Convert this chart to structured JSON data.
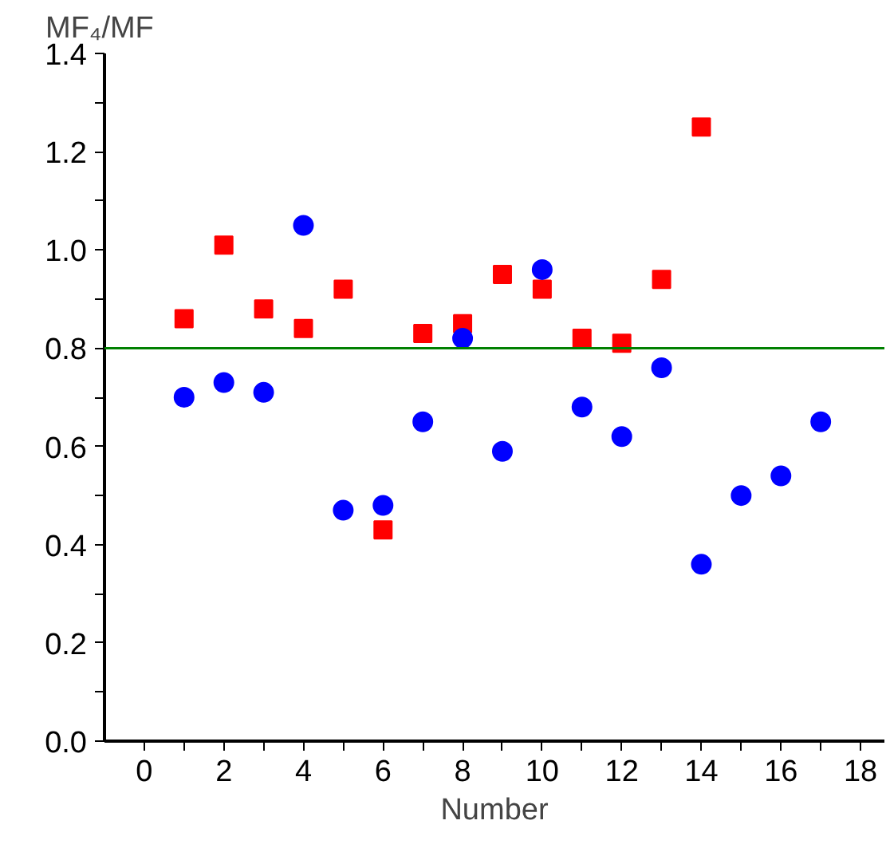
{
  "chart_data": {
    "type": "scatter",
    "xlabel": "Number",
    "ylabel": "MF₄/MF",
    "series": [
      {
        "color": "#ff0000",
        "marker": "square",
        "x": [
          1,
          2,
          3,
          4,
          5,
          6,
          7,
          8,
          9,
          10,
          11,
          12,
          13,
          14
        ],
        "values": [
          0.86,
          1.01,
          0.88,
          0.84,
          0.92,
          0.43,
          0.83,
          0.85,
          0.95,
          0.92,
          0.82,
          0.81,
          0.94,
          1.25
        ]
      },
      {
        "color": "#0000ff",
        "marker": "circle",
        "x": [
          1,
          2,
          3,
          4,
          5,
          6,
          7,
          8,
          9,
          10,
          11,
          12,
          13,
          14,
          15,
          16,
          17
        ],
        "values": [
          0.7,
          0.73,
          0.71,
          1.05,
          0.47,
          0.48,
          0.65,
          0.82,
          0.59,
          0.96,
          0.68,
          0.62,
          0.76,
          0.36,
          0.5,
          0.54,
          0.65
        ]
      }
    ],
    "ref_lines": [
      {
        "axis": "y",
        "value": 0.8,
        "color": "#008000"
      }
    ],
    "xlim": [
      -1,
      18.6
    ],
    "ylim": [
      0,
      1.4
    ],
    "xticks": [
      0,
      {
        "value": 1,
        "label": null
      },
      2,
      {
        "value": 3,
        "label": null
      },
      4,
      {
        "value": 5,
        "label": null
      },
      6,
      {
        "value": 7,
        "label": null
      },
      8,
      {
        "value": 9,
        "label": null
      },
      10,
      {
        "value": 11,
        "label": null
      },
      12,
      {
        "value": 13,
        "label": null
      },
      14,
      {
        "value": 15,
        "label": null
      },
      16,
      {
        "value": 17,
        "label": null
      },
      18
    ],
    "yticks": [
      {
        "value": 0,
        "label": "0.0"
      },
      {
        "value": 0.1,
        "label": null
      },
      {
        "value": 0.2,
        "label": "0.2"
      },
      {
        "value": 0.3,
        "label": null
      },
      {
        "value": 0.4,
        "label": "0.4"
      },
      {
        "value": 0.5,
        "label": null
      },
      {
        "value": 0.6,
        "label": "0.6"
      },
      {
        "value": 0.7,
        "label": null
      },
      {
        "value": 0.8,
        "label": "0.8"
      },
      {
        "value": 0.9,
        "label": null
      },
      {
        "value": 1.0,
        "label": "1.0"
      },
      {
        "value": 1.1,
        "label": null
      },
      {
        "value": 1.2,
        "label": "1.2"
      },
      {
        "value": 1.3,
        "label": null
      },
      {
        "value": 1.4,
        "label": "1.4"
      }
    ]
  }
}
